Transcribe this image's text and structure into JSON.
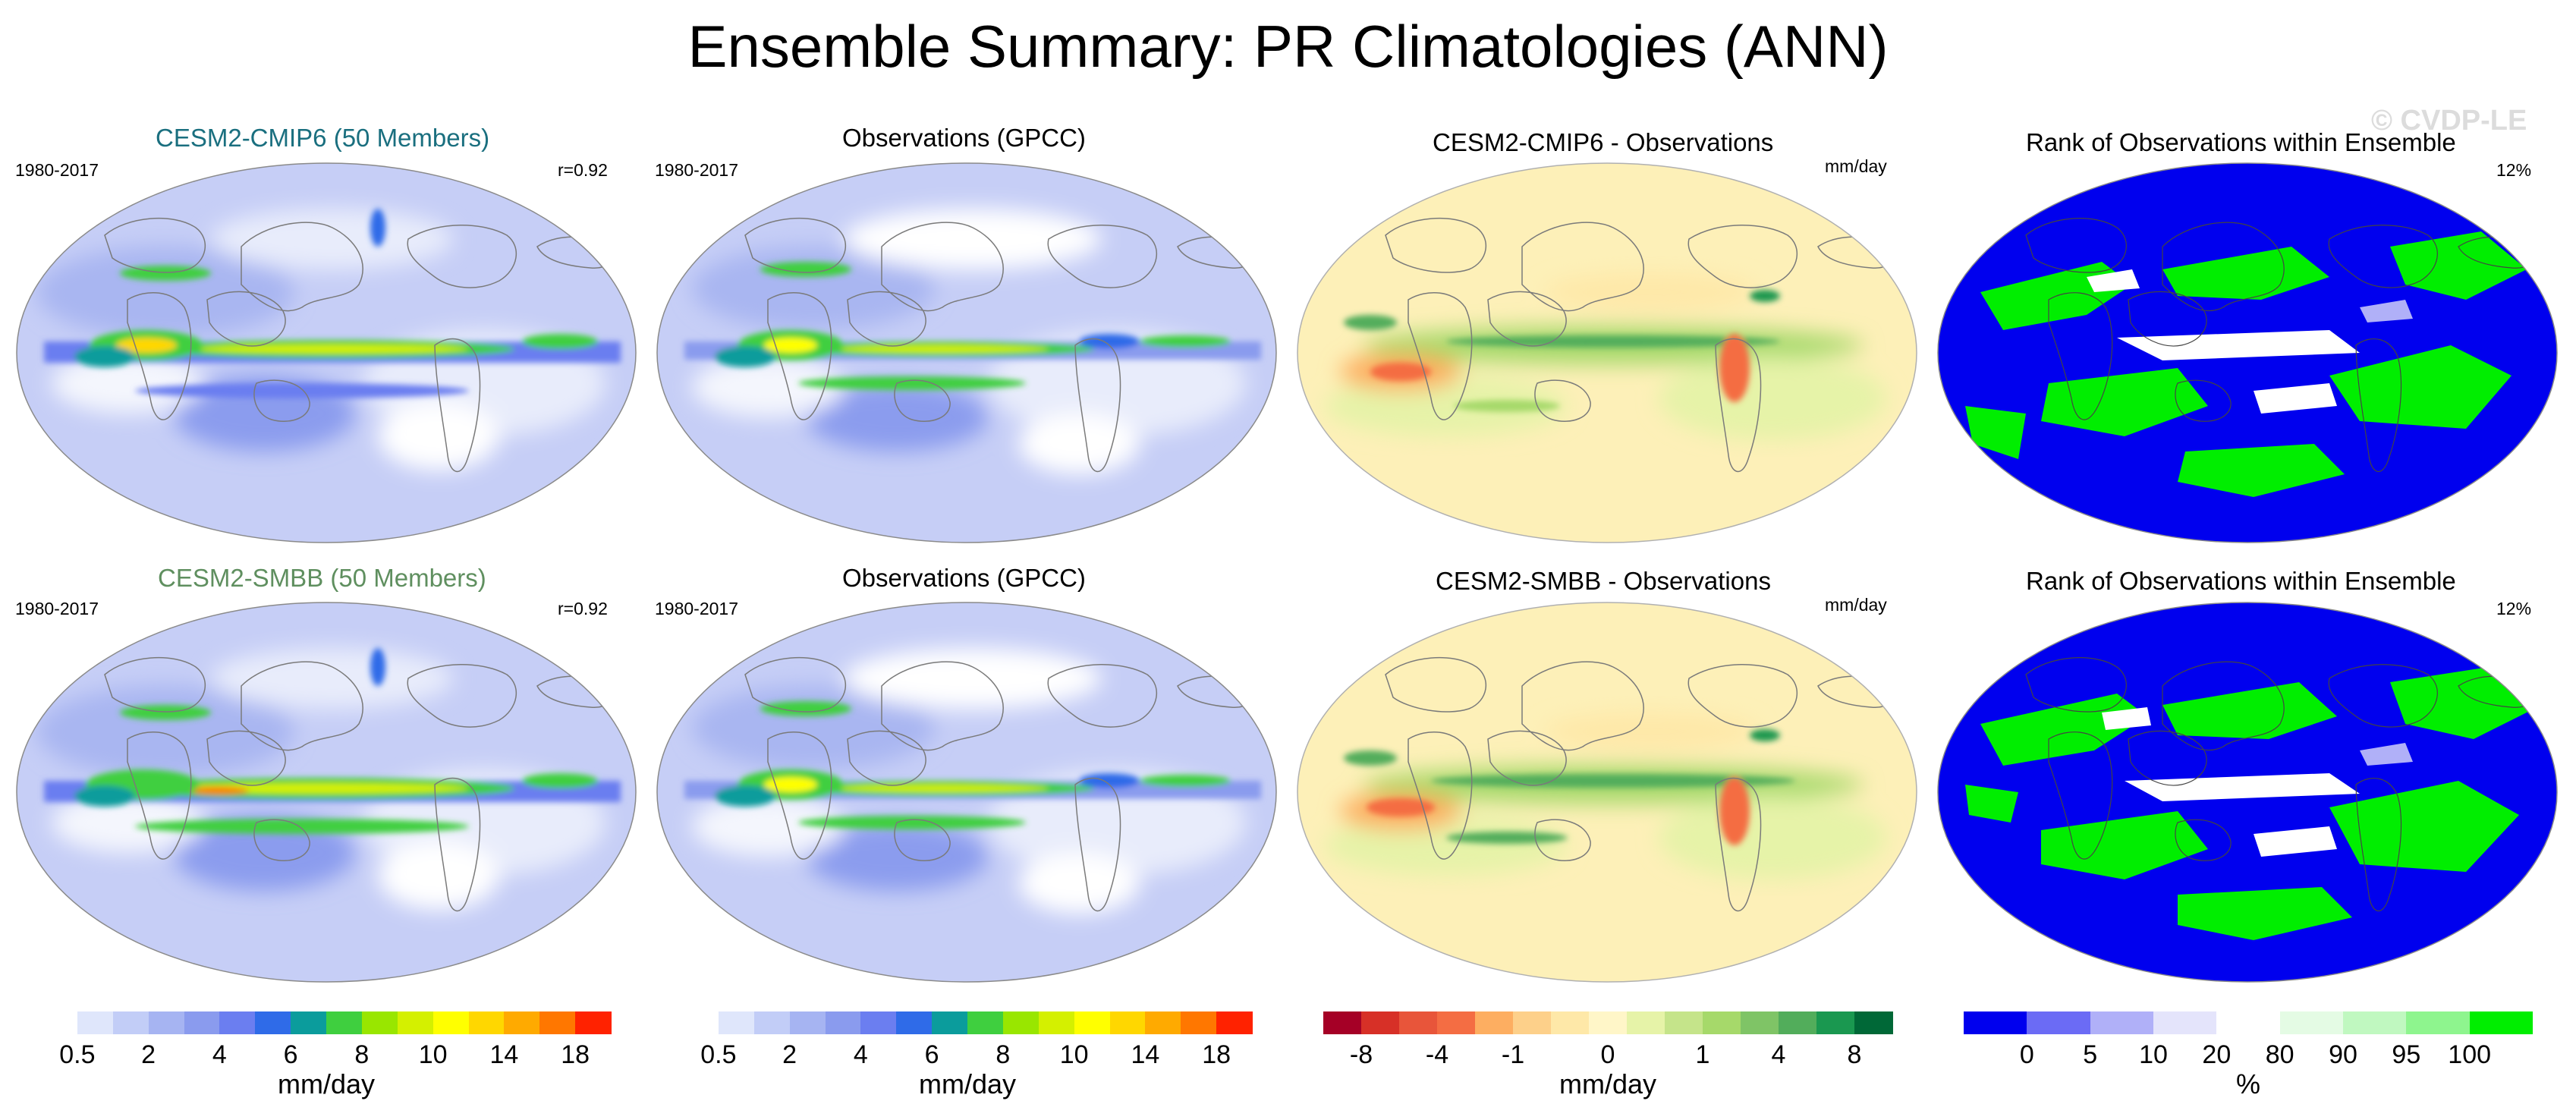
{
  "title": "Ensemble Summary: PR Climatologies (ANN)",
  "watermark": "© CVDP-LE",
  "colors": {
    "teal_title": "#1a6f7f",
    "green_title": "#5f8f5f",
    "land_outline": "#7a7a7a"
  },
  "rows": [
    {
      "model_title": "CESM2-CMIP6 (50 Members)",
      "model_period": "1980-2017",
      "model_corr": "r=0.92",
      "obs_title": "Observations (GPCC)",
      "obs_period": "1980-2017",
      "diff_title": "CESM2-CMIP6 - Observations",
      "diff_units": "mm/day",
      "rank_title": "Rank of Observations within Ensemble",
      "rank_pct": "12%"
    },
    {
      "model_title": "CESM2-SMBB (50 Members)",
      "model_period": "1980-2017",
      "model_corr": "r=0.92",
      "obs_title": "Observations (GPCC)",
      "obs_period": "1980-2017",
      "diff_title": "CESM2-SMBB - Observations",
      "diff_units": "mm/day",
      "rank_title": "Rank of Observations within Ensemble",
      "rank_pct": "12%"
    }
  ],
  "colorbars": [
    {
      "name": "model-colorbar",
      "unit": "mm/day",
      "colors": [
        "#ffffff",
        "#dfe6fb",
        "#c2cdf7",
        "#a6b4f2",
        "#8a9bee",
        "#6b7ef0",
        "#2f6be8",
        "#0b9c9c",
        "#3fcf3f",
        "#99e600",
        "#d4f000",
        "#ffff00",
        "#ffd700",
        "#ffaa00",
        "#ff7700",
        "#ff2200"
      ],
      "ticks": [
        "0.5",
        "2",
        "4",
        "6",
        "8",
        "10",
        "14",
        "18"
      ],
      "tick_boundaries": [
        1,
        3,
        5,
        7,
        9,
        11,
        13,
        15
      ]
    },
    {
      "name": "obs-colorbar",
      "unit": "mm/day",
      "colors": [
        "#ffffff",
        "#dfe6fb",
        "#c2cdf7",
        "#a6b4f2",
        "#8a9bee",
        "#6b7ef0",
        "#2f6be8",
        "#0b9c9c",
        "#3fcf3f",
        "#99e600",
        "#d4f000",
        "#ffff00",
        "#ffd700",
        "#ffaa00",
        "#ff7700",
        "#ff2200"
      ],
      "ticks": [
        "0.5",
        "2",
        "4",
        "6",
        "8",
        "10",
        "14",
        "18"
      ],
      "tick_boundaries": [
        1,
        3,
        5,
        7,
        9,
        11,
        13,
        15
      ]
    },
    {
      "name": "diff-colorbar",
      "unit": "mm/day",
      "colors": [
        "#a50026",
        "#d73027",
        "#e8553a",
        "#f46d43",
        "#fdae61",
        "#fdd08a",
        "#fee8a8",
        "#fff6c8",
        "#e6f3a8",
        "#c5e48a",
        "#a6d96a",
        "#7fc466",
        "#52ad5b",
        "#1a9850",
        "#006837"
      ],
      "ticks": [
        "-8",
        "-4",
        "-1",
        "0",
        "1",
        "4",
        "8"
      ],
      "tick_boundaries": [
        1,
        3,
        5,
        7.5,
        10,
        12,
        14
      ]
    },
    {
      "name": "rank-colorbar",
      "unit": "%",
      "colors": [
        "#0000ee",
        "#6b6bf5",
        "#b0b0f8",
        "#e4e4fb",
        "#ffffff",
        "#e4fbe4",
        "#c0f8c0",
        "#8ef58e",
        "#00ee00"
      ],
      "ticks": [
        "0",
        "5",
        "10",
        "20",
        "80",
        "90",
        "95",
        "100"
      ],
      "tick_boundaries": [
        1,
        2,
        3,
        4,
        5,
        6,
        7,
        8
      ]
    }
  ]
}
